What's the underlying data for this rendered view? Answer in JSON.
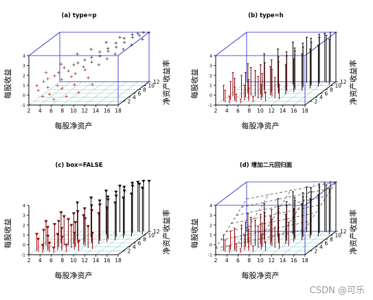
{
  "chart_data": [
    {
      "type": "scatter",
      "title": "(a) type=p",
      "xlabel": "每股净资产",
      "ylabel": "净资产收益率",
      "zlabel": "每股收益",
      "xlim": [
        2,
        18
      ],
      "ylim": [
        0,
        12
      ],
      "zlim": [
        -1,
        4
      ],
      "box": true,
      "mark": "point",
      "x_ticks": [
        "2",
        "4",
        "6",
        "8",
        "10",
        "12",
        "14",
        "16",
        "18"
      ],
      "y_ticks": [
        "2",
        "4",
        "6",
        "8",
        "10",
        "12"
      ],
      "z_ticks": [
        "-1",
        "0",
        "1",
        "2",
        "3",
        "4"
      ],
      "points": [
        [
          2.5,
          2.0,
          0.6
        ],
        [
          3.0,
          1.5,
          0.2
        ],
        [
          3.5,
          2.5,
          0.9
        ],
        [
          4.0,
          1.0,
          -0.3
        ],
        [
          4.0,
          3.0,
          1.1
        ],
        [
          4.5,
          2.0,
          0.4
        ],
        [
          5.0,
          3.5,
          1.3
        ],
        [
          5.0,
          1.5,
          -0.2
        ],
        [
          5.5,
          4.0,
          1.5
        ],
        [
          6.0,
          2.5,
          0.5
        ],
        [
          6.0,
          5.0,
          1.8
        ],
        [
          6.5,
          3.0,
          1.0
        ],
        [
          7.0,
          4.5,
          1.6
        ],
        [
          7.0,
          2.0,
          0.3
        ],
        [
          7.5,
          5.5,
          2.0
        ],
        [
          8.0,
          3.5,
          1.2
        ],
        [
          8.0,
          6.0,
          2.1
        ],
        [
          8.5,
          4.0,
          1.4
        ],
        [
          9.0,
          6.5,
          2.3
        ],
        [
          9.0,
          2.5,
          0.6
        ],
        [
          9.5,
          5.0,
          1.9
        ],
        [
          10.0,
          7.0,
          2.5
        ],
        [
          10.0,
          4.5,
          1.7
        ],
        [
          10.5,
          6.0,
          2.2
        ],
        [
          11.0,
          8.0,
          2.8
        ],
        [
          11.0,
          3.5,
          1.1
        ],
        [
          11.5,
          7.0,
          2.6
        ],
        [
          12.0,
          9.0,
          3.0
        ],
        [
          12.0,
          5.5,
          2.0
        ],
        [
          12.5,
          8.0,
          2.9
        ],
        [
          13.0,
          10.0,
          3.3
        ],
        [
          13.0,
          6.5,
          2.4
        ],
        [
          13.5,
          9.0,
          3.1
        ],
        [
          14.0,
          11.0,
          3.6
        ],
        [
          14.0,
          7.5,
          2.7
        ],
        [
          14.5,
          10.0,
          3.4
        ],
        [
          15.0,
          12.0,
          3.8
        ],
        [
          15.0,
          8.5,
          3.0
        ],
        [
          15.5,
          11.0,
          3.7
        ],
        [
          16.0,
          12.0,
          3.9
        ],
        [
          16.0,
          9.5,
          3.2
        ],
        [
          16.5,
          11.5,
          3.8
        ],
        [
          17.0,
          12.0,
          4.0
        ],
        [
          17.5,
          10.5,
          3.6
        ],
        [
          18.0,
          12.0,
          4.0
        ],
        [
          6.0,
          1.0,
          -0.6
        ],
        [
          8.0,
          1.5,
          -0.4
        ],
        [
          10.0,
          2.0,
          -0.1
        ],
        [
          12.0,
          3.0,
          0.5
        ],
        [
          5.0,
          6.0,
          2.0
        ],
        [
          7.0,
          8.0,
          2.6
        ],
        [
          9.0,
          9.0,
          2.9
        ],
        [
          11.0,
          10.5,
          3.3
        ],
        [
          13.0,
          11.5,
          3.6
        ],
        [
          3.0,
          4.5,
          1.4
        ]
      ]
    },
    {
      "type": "scatter",
      "title": "(b) type=h",
      "xlabel": "每股净资产",
      "ylabel": "净资产收益率",
      "zlabel": "每股收益",
      "xlim": [
        2,
        18
      ],
      "ylim": [
        0,
        12
      ],
      "zlim": [
        -1,
        4
      ],
      "box": true,
      "mark": "vertical-line",
      "x_ticks": [
        "2",
        "4",
        "6",
        "8",
        "10",
        "12",
        "14",
        "16",
        "18"
      ],
      "y_ticks": [
        "2",
        "4",
        "6",
        "8",
        "10",
        "12"
      ],
      "z_ticks": [
        "-1",
        "0",
        "1",
        "2",
        "3",
        "4"
      ],
      "points": [
        [
          2.5,
          2.0,
          0.6
        ],
        [
          3.0,
          1.5,
          0.2
        ],
        [
          3.5,
          2.5,
          0.9
        ],
        [
          4.0,
          1.0,
          -0.3
        ],
        [
          4.0,
          3.0,
          1.1
        ],
        [
          4.5,
          2.0,
          0.4
        ],
        [
          5.0,
          3.5,
          1.3
        ],
        [
          5.0,
          1.5,
          -0.2
        ],
        [
          5.5,
          4.0,
          1.5
        ],
        [
          6.0,
          2.5,
          0.5
        ],
        [
          6.0,
          5.0,
          1.8
        ],
        [
          6.5,
          3.0,
          1.0
        ],
        [
          7.0,
          4.5,
          1.6
        ],
        [
          7.0,
          2.0,
          0.3
        ],
        [
          7.5,
          5.5,
          2.0
        ],
        [
          8.0,
          3.5,
          1.2
        ],
        [
          8.0,
          6.0,
          2.1
        ],
        [
          8.5,
          4.0,
          1.4
        ],
        [
          9.0,
          6.5,
          2.3
        ],
        [
          9.0,
          2.5,
          0.6
        ],
        [
          9.5,
          5.0,
          1.9
        ],
        [
          10.0,
          7.0,
          2.5
        ],
        [
          10.0,
          4.5,
          1.7
        ],
        [
          10.5,
          6.0,
          2.2
        ],
        [
          11.0,
          8.0,
          2.8
        ],
        [
          11.0,
          3.5,
          1.1
        ],
        [
          11.5,
          7.0,
          2.6
        ],
        [
          12.0,
          9.0,
          3.0
        ],
        [
          12.0,
          5.5,
          2.0
        ],
        [
          12.5,
          8.0,
          2.9
        ],
        [
          13.0,
          10.0,
          3.3
        ],
        [
          13.0,
          6.5,
          2.4
        ],
        [
          13.5,
          9.0,
          3.1
        ],
        [
          14.0,
          11.0,
          3.6
        ],
        [
          14.0,
          7.5,
          2.7
        ],
        [
          14.5,
          10.0,
          3.4
        ],
        [
          15.0,
          12.0,
          3.8
        ],
        [
          15.0,
          8.5,
          3.0
        ],
        [
          15.5,
          11.0,
          3.7
        ],
        [
          16.0,
          12.0,
          3.9
        ],
        [
          16.0,
          9.5,
          3.2
        ],
        [
          16.5,
          11.5,
          3.8
        ],
        [
          17.0,
          12.0,
          4.0
        ],
        [
          17.5,
          10.5,
          3.6
        ],
        [
          18.0,
          12.0,
          4.0
        ],
        [
          6.0,
          1.0,
          -0.6
        ],
        [
          8.0,
          1.5,
          -0.4
        ],
        [
          10.0,
          2.0,
          -0.1
        ],
        [
          12.0,
          3.0,
          0.5
        ],
        [
          5.0,
          6.0,
          2.0
        ],
        [
          7.0,
          8.0,
          2.6
        ],
        [
          9.0,
          9.0,
          2.9
        ],
        [
          11.0,
          10.5,
          3.3
        ],
        [
          13.0,
          11.5,
          3.6
        ],
        [
          3.0,
          4.5,
          1.4
        ]
      ]
    },
    {
      "type": "scatter",
      "title": "(c) box=FALSE",
      "xlabel": "每股净资产",
      "ylabel": "净资产收益率",
      "zlabel": "每股收益",
      "xlim": [
        2,
        18
      ],
      "ylim": [
        0,
        12
      ],
      "zlim": [
        -1,
        4
      ],
      "box": false,
      "mark": "vertical-line-triangle",
      "x_ticks": [
        "2",
        "4",
        "6",
        "8",
        "10",
        "12",
        "14",
        "16",
        "18"
      ],
      "y_ticks": [
        "2",
        "4",
        "6",
        "8",
        "10",
        "12"
      ],
      "z_ticks": [
        "-1",
        "0",
        "1",
        "2",
        "3",
        "4"
      ],
      "points": [
        [
          2.5,
          2.0,
          0.6
        ],
        [
          3.0,
          1.5,
          0.2
        ],
        [
          3.5,
          2.5,
          0.9
        ],
        [
          4.0,
          1.0,
          -0.3
        ],
        [
          4.0,
          3.0,
          1.1
        ],
        [
          4.5,
          2.0,
          0.4
        ],
        [
          5.0,
          3.5,
          1.3
        ],
        [
          5.0,
          1.5,
          -0.2
        ],
        [
          5.5,
          4.0,
          1.5
        ],
        [
          6.0,
          2.5,
          0.5
        ],
        [
          6.0,
          5.0,
          1.8
        ],
        [
          6.5,
          3.0,
          1.0
        ],
        [
          7.0,
          4.5,
          1.6
        ],
        [
          7.0,
          2.0,
          0.3
        ],
        [
          7.5,
          5.5,
          2.0
        ],
        [
          8.0,
          3.5,
          1.2
        ],
        [
          8.0,
          6.0,
          2.1
        ],
        [
          8.5,
          4.0,
          1.4
        ],
        [
          9.0,
          6.5,
          2.3
        ],
        [
          9.0,
          2.5,
          0.6
        ],
        [
          9.5,
          5.0,
          1.9
        ],
        [
          10.0,
          7.0,
          2.5
        ],
        [
          10.0,
          4.5,
          1.7
        ],
        [
          10.5,
          6.0,
          2.2
        ],
        [
          11.0,
          8.0,
          2.8
        ],
        [
          11.0,
          3.5,
          1.1
        ],
        [
          11.5,
          7.0,
          2.6
        ],
        [
          12.0,
          9.0,
          3.0
        ],
        [
          12.0,
          5.5,
          2.0
        ],
        [
          12.5,
          8.0,
          2.9
        ],
        [
          13.0,
          10.0,
          3.3
        ],
        [
          13.0,
          6.5,
          2.4
        ],
        [
          13.5,
          9.0,
          3.1
        ],
        [
          14.0,
          11.0,
          3.6
        ],
        [
          14.0,
          7.5,
          2.7
        ],
        [
          14.5,
          10.0,
          3.4
        ],
        [
          15.0,
          12.0,
          3.8
        ],
        [
          15.0,
          8.5,
          3.0
        ],
        [
          15.5,
          11.0,
          3.7
        ],
        [
          16.0,
          12.0,
          3.9
        ],
        [
          16.0,
          9.5,
          3.2
        ],
        [
          16.5,
          11.5,
          3.8
        ],
        [
          17.0,
          12.0,
          4.0
        ],
        [
          17.5,
          10.5,
          3.6
        ],
        [
          18.0,
          12.0,
          4.0
        ],
        [
          6.0,
          1.0,
          -0.6
        ],
        [
          8.0,
          1.5,
          -0.4
        ],
        [
          10.0,
          2.0,
          -0.1
        ],
        [
          12.0,
          3.0,
          0.5
        ],
        [
          5.0,
          6.0,
          2.0
        ],
        [
          7.0,
          8.0,
          2.6
        ],
        [
          9.0,
          9.0,
          2.9
        ],
        [
          11.0,
          10.5,
          3.3
        ],
        [
          13.0,
          11.5,
          3.6
        ],
        [
          3.0,
          4.5,
          1.4
        ]
      ]
    },
    {
      "type": "scatter",
      "title": "(d) 增加二元回归面",
      "xlabel": "每股净资产",
      "ylabel": "净资产收益率",
      "zlabel": "每股收益",
      "xlim": [
        2,
        18
      ],
      "ylim": [
        0,
        12
      ],
      "zlim": [
        -1,
        4
      ],
      "box": true,
      "mark": "vertical-line",
      "regression_plane": true,
      "x_ticks": [
        "2",
        "4",
        "6",
        "8",
        "10",
        "12",
        "14",
        "16",
        "18"
      ],
      "y_ticks": [
        "2",
        "4",
        "6",
        "8",
        "10",
        "12"
      ],
      "z_ticks": [
        "-1",
        "0",
        "1",
        "2",
        "3",
        "4"
      ],
      "points": [
        [
          2.5,
          2.0,
          0.6
        ],
        [
          3.0,
          1.5,
          0.2
        ],
        [
          3.5,
          2.5,
          0.9
        ],
        [
          4.0,
          1.0,
          -0.3
        ],
        [
          4.0,
          3.0,
          1.1
        ],
        [
          4.5,
          2.0,
          0.4
        ],
        [
          5.0,
          3.5,
          1.3
        ],
        [
          5.0,
          1.5,
          -0.2
        ],
        [
          5.5,
          4.0,
          1.5
        ],
        [
          6.0,
          2.5,
          0.5
        ],
        [
          6.0,
          5.0,
          1.8
        ],
        [
          6.5,
          3.0,
          1.0
        ],
        [
          7.0,
          4.5,
          1.6
        ],
        [
          7.0,
          2.0,
          0.3
        ],
        [
          7.5,
          5.5,
          2.0
        ],
        [
          8.0,
          3.5,
          1.2
        ],
        [
          8.0,
          6.0,
          2.1
        ],
        [
          8.5,
          4.0,
          1.4
        ],
        [
          9.0,
          6.5,
          2.3
        ],
        [
          9.0,
          2.5,
          0.6
        ],
        [
          9.5,
          5.0,
          1.9
        ],
        [
          10.0,
          7.0,
          2.5
        ],
        [
          10.0,
          4.5,
          1.7
        ],
        [
          10.5,
          6.0,
          2.2
        ],
        [
          11.0,
          8.0,
          2.8
        ],
        [
          11.0,
          3.5,
          1.1
        ],
        [
          11.5,
          7.0,
          2.6
        ],
        [
          12.0,
          9.0,
          3.0
        ],
        [
          12.0,
          5.5,
          2.0
        ],
        [
          12.5,
          8.0,
          2.9
        ],
        [
          13.0,
          10.0,
          3.3
        ],
        [
          13.0,
          6.5,
          2.4
        ],
        [
          13.5,
          9.0,
          3.1
        ],
        [
          14.0,
          11.0,
          3.6
        ],
        [
          14.0,
          7.5,
          2.7
        ],
        [
          14.5,
          10.0,
          3.4
        ],
        [
          15.0,
          12.0,
          3.8
        ],
        [
          15.0,
          8.5,
          3.0
        ],
        [
          15.5,
          11.0,
          3.7
        ],
        [
          16.0,
          12.0,
          3.9
        ],
        [
          16.0,
          9.5,
          3.2
        ],
        [
          16.5,
          11.5,
          3.8
        ],
        [
          17.0,
          12.0,
          4.0
        ],
        [
          17.5,
          10.5,
          3.6
        ],
        [
          18.0,
          12.0,
          4.0
        ],
        [
          6.0,
          1.0,
          -0.6
        ],
        [
          8.0,
          1.5,
          -0.4
        ],
        [
          10.0,
          2.0,
          -0.1
        ],
        [
          12.0,
          3.0,
          0.5
        ],
        [
          5.0,
          6.0,
          2.0
        ],
        [
          7.0,
          8.0,
          2.6
        ],
        [
          9.0,
          9.0,
          2.9
        ],
        [
          11.0,
          10.5,
          3.3
        ],
        [
          13.0,
          11.5,
          3.6
        ],
        [
          13.0,
          4.5,
          1.4
        ]
      ]
    }
  ],
  "colors": {
    "box": "#1f1fd6",
    "grid": "#8fd0d8",
    "axis": "#000000",
    "gradient_near": "#d80000",
    "gradient_far": "#000000"
  },
  "watermark": "CSDN @可乐"
}
